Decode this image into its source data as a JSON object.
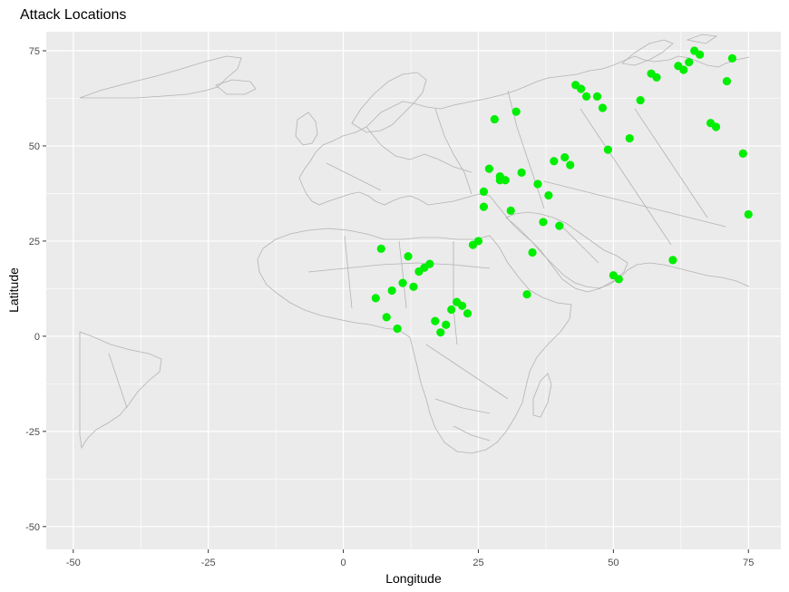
{
  "chart_data": {
    "type": "scatter",
    "title": "Attack Locations",
    "xlabel": "Longitude",
    "ylabel": "Latitude",
    "xlim": [
      -55,
      81
    ],
    "ylim": [
      -56,
      80
    ],
    "x_ticks": [
      -50,
      -25,
      0,
      25,
      50,
      75
    ],
    "y_ticks": [
      -50,
      -25,
      0,
      25,
      50,
      75
    ],
    "x_tick_labels": [
      "-50",
      "-25",
      "0",
      "25",
      "50",
      "75"
    ],
    "y_tick_labels": [
      "-50",
      "-25",
      "0",
      "25",
      "50",
      "75"
    ],
    "grid": true,
    "legend": "none",
    "point_color": "#00ee00",
    "panel_color": "#ebebeb",
    "gridline_color": "#ffffff",
    "map_outline_color": "#b3b3b3",
    "points": [
      {
        "x": 65,
        "y": 75
      },
      {
        "x": 66,
        "y": 74
      },
      {
        "x": 72,
        "y": 73
      },
      {
        "x": 64,
        "y": 72
      },
      {
        "x": 62,
        "y": 71
      },
      {
        "x": 63,
        "y": 70
      },
      {
        "x": 57,
        "y": 69
      },
      {
        "x": 58,
        "y": 68
      },
      {
        "x": 71,
        "y": 67
      },
      {
        "x": 43,
        "y": 66
      },
      {
        "x": 44,
        "y": 65
      },
      {
        "x": 45,
        "y": 63
      },
      {
        "x": 47,
        "y": 63
      },
      {
        "x": 55,
        "y": 62
      },
      {
        "x": 48,
        "y": 60
      },
      {
        "x": 32,
        "y": 59
      },
      {
        "x": 28,
        "y": 57
      },
      {
        "x": 68,
        "y": 56
      },
      {
        "x": 69,
        "y": 55
      },
      {
        "x": 53,
        "y": 52
      },
      {
        "x": 49,
        "y": 49
      },
      {
        "x": 74,
        "y": 48
      },
      {
        "x": 41,
        "y": 47
      },
      {
        "x": 39,
        "y": 46
      },
      {
        "x": 42,
        "y": 45
      },
      {
        "x": 27,
        "y": 44
      },
      {
        "x": 33,
        "y": 43
      },
      {
        "x": 29,
        "y": 42
      },
      {
        "x": 29,
        "y": 41
      },
      {
        "x": 30,
        "y": 41
      },
      {
        "x": 36,
        "y": 40
      },
      {
        "x": 26,
        "y": 38
      },
      {
        "x": 38,
        "y": 37
      },
      {
        "x": 26,
        "y": 34
      },
      {
        "x": 31,
        "y": 33
      },
      {
        "x": 75,
        "y": 32
      },
      {
        "x": 37,
        "y": 30
      },
      {
        "x": 40,
        "y": 29
      },
      {
        "x": 25,
        "y": 25
      },
      {
        "x": 24,
        "y": 24
      },
      {
        "x": 7,
        "y": 23
      },
      {
        "x": 35,
        "y": 22
      },
      {
        "x": 12,
        "y": 21
      },
      {
        "x": 61,
        "y": 20
      },
      {
        "x": 16,
        "y": 19
      },
      {
        "x": 15,
        "y": 18
      },
      {
        "x": 14,
        "y": 17
      },
      {
        "x": 50,
        "y": 16
      },
      {
        "x": 51,
        "y": 15
      },
      {
        "x": 11,
        "y": 14
      },
      {
        "x": 13,
        "y": 13
      },
      {
        "x": 9,
        "y": 12
      },
      {
        "x": 34,
        "y": 11
      },
      {
        "x": 6,
        "y": 10
      },
      {
        "x": 21,
        "y": 9
      },
      {
        "x": 22,
        "y": 8
      },
      {
        "x": 20,
        "y": 7
      },
      {
        "x": 23,
        "y": 6
      },
      {
        "x": 8,
        "y": 5
      },
      {
        "x": 17,
        "y": 4
      },
      {
        "x": 19,
        "y": 3
      },
      {
        "x": 10,
        "y": 2
      },
      {
        "x": 18,
        "y": 1
      }
    ]
  }
}
